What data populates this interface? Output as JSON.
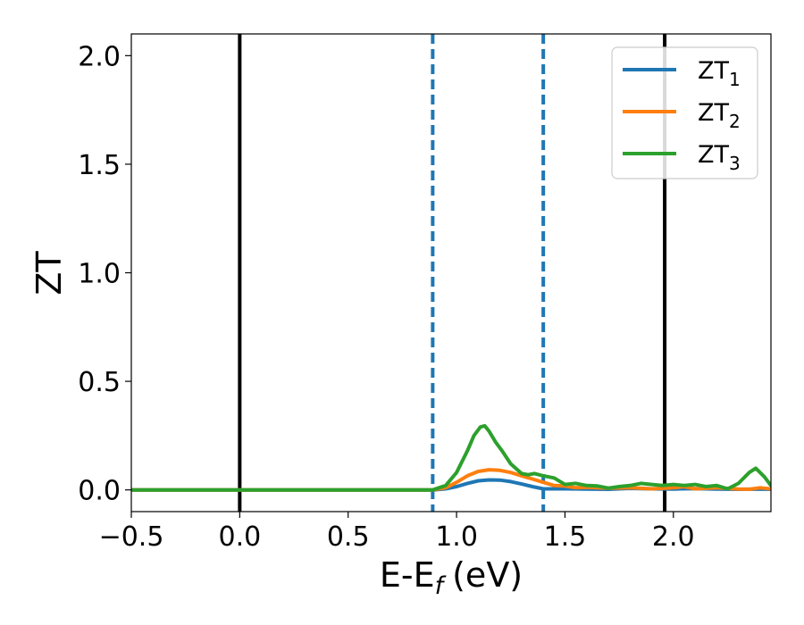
{
  "chart_data": {
    "type": "line",
    "xlabel": "E-E",
    "xlabel_sub": "f",
    "xlabel_unit": "(eV)",
    "ylabel": "ZT",
    "xlim": [
      -0.5,
      2.45
    ],
    "ylim": [
      -0.1,
      2.1
    ],
    "xticks": [
      -0.5,
      0.0,
      0.5,
      1.0,
      1.5,
      2.0
    ],
    "xtick_labels": [
      "−0.5",
      "0.0",
      "0.5",
      "1.0",
      "1.5",
      "2.0"
    ],
    "yticks": [
      0.0,
      0.5,
      1.0,
      1.5,
      2.0
    ],
    "ytick_labels": [
      "0.0",
      "0.5",
      "1.0",
      "1.5",
      "2.0"
    ],
    "grid": false,
    "legend_position": "top-right",
    "vlines_solid": [
      0.0,
      1.96
    ],
    "vlines_dashed": [
      0.89,
      1.4
    ],
    "vline_solid_color": "#000000",
    "vline_dashed_color": "#1f77b4",
    "series": [
      {
        "name": "ZT",
        "sub": "1",
        "color": "#1f77b4",
        "x": [
          -0.5,
          0.89,
          0.95,
          1.0,
          1.05,
          1.1,
          1.15,
          1.2,
          1.25,
          1.3,
          1.35,
          1.4,
          1.5,
          1.6,
          1.7,
          1.8,
          1.9,
          2.0,
          2.1,
          2.2,
          2.3,
          2.4,
          2.45
        ],
        "y": [
          0.0,
          0.0,
          0.005,
          0.015,
          0.03,
          0.042,
          0.046,
          0.045,
          0.038,
          0.027,
          0.015,
          0.005,
          0.005,
          0.004,
          0.003,
          0.007,
          0.005,
          0.004,
          0.006,
          0.004,
          0.003,
          0.004,
          0.003
        ]
      },
      {
        "name": "ZT",
        "sub": "2",
        "color": "#ff7f0e",
        "x": [
          -0.5,
          0.89,
          0.95,
          1.0,
          1.05,
          1.1,
          1.15,
          1.2,
          1.25,
          1.3,
          1.35,
          1.4,
          1.45,
          1.5,
          1.55,
          1.6,
          1.7,
          1.8,
          1.9,
          2.0,
          2.05,
          2.1,
          2.2,
          2.3,
          2.35,
          2.4,
          2.45
        ],
        "y": [
          0.0,
          0.0,
          0.01,
          0.035,
          0.065,
          0.085,
          0.093,
          0.09,
          0.08,
          0.065,
          0.05,
          0.035,
          0.02,
          0.018,
          0.01,
          0.012,
          0.008,
          0.01,
          0.005,
          0.01,
          0.015,
          0.005,
          0.01,
          0.004,
          0.003,
          0.01,
          0.004
        ]
      },
      {
        "name": "ZT",
        "sub": "3",
        "color": "#2ca02c",
        "x": [
          -0.5,
          0.89,
          0.95,
          1.0,
          1.05,
          1.08,
          1.11,
          1.13,
          1.15,
          1.18,
          1.21,
          1.25,
          1.3,
          1.33,
          1.36,
          1.4,
          1.45,
          1.5,
          1.55,
          1.6,
          1.65,
          1.7,
          1.75,
          1.8,
          1.85,
          1.9,
          1.95,
          2.0,
          2.05,
          2.1,
          2.15,
          2.2,
          2.25,
          2.3,
          2.35,
          2.38,
          2.42,
          2.45
        ],
        "y": [
          0.0,
          0.0,
          0.02,
          0.08,
          0.18,
          0.25,
          0.29,
          0.295,
          0.27,
          0.22,
          0.18,
          0.12,
          0.075,
          0.07,
          0.075,
          0.065,
          0.055,
          0.025,
          0.03,
          0.02,
          0.018,
          0.008,
          0.015,
          0.02,
          0.03,
          0.025,
          0.02,
          0.025,
          0.02,
          0.025,
          0.015,
          0.02,
          0.005,
          0.03,
          0.08,
          0.1,
          0.06,
          0.02
        ]
      }
    ]
  }
}
